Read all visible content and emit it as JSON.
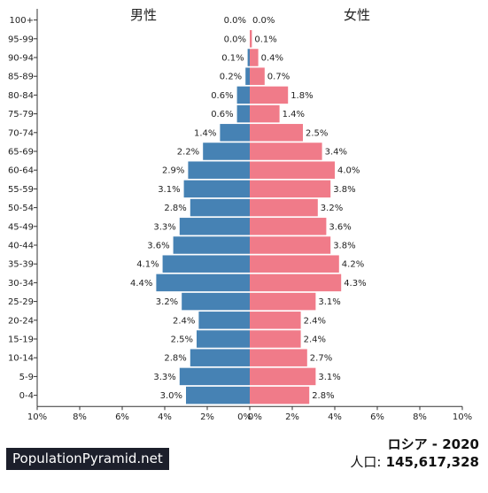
{
  "header": {
    "male_label": "男性",
    "female_label": "女性"
  },
  "footer": {
    "brand": "PopulationPyramid.net",
    "country_year": "ロシア - 2020",
    "population_label": "人口:",
    "population_value": "145,617,328"
  },
  "colors": {
    "male": "#4682b4",
    "female": "#f07b89",
    "axis": "#333333"
  },
  "chart_data": {
    "type": "bar",
    "orientation": "horizontal-pyramid",
    "categories": [
      "100+",
      "95-99",
      "90-94",
      "85-89",
      "80-84",
      "75-79",
      "70-74",
      "65-69",
      "60-64",
      "55-59",
      "50-54",
      "45-49",
      "40-44",
      "35-39",
      "30-34",
      "25-29",
      "20-24",
      "15-19",
      "10-14",
      "5-9",
      "0-4"
    ],
    "series": [
      {
        "name": "男性",
        "values": [
          0.0,
          0.0,
          0.1,
          0.2,
          0.6,
          0.6,
          1.4,
          2.2,
          2.9,
          3.1,
          2.8,
          3.3,
          3.6,
          4.1,
          4.4,
          3.2,
          2.4,
          2.5,
          2.8,
          3.3,
          3.0
        ]
      },
      {
        "name": "女性",
        "values": [
          0.0,
          0.1,
          0.4,
          0.7,
          1.8,
          1.4,
          2.5,
          3.4,
          4.0,
          3.8,
          3.2,
          3.6,
          3.8,
          4.2,
          4.3,
          3.1,
          2.4,
          2.4,
          2.7,
          3.1,
          2.8
        ]
      }
    ],
    "xlim": [
      0,
      10
    ],
    "xticks": [
      "10%",
      "8%",
      "6%",
      "4%",
      "2%",
      "0%",
      "0%",
      "2%",
      "4%",
      "6%",
      "8%",
      "10%"
    ],
    "unit": "%"
  }
}
